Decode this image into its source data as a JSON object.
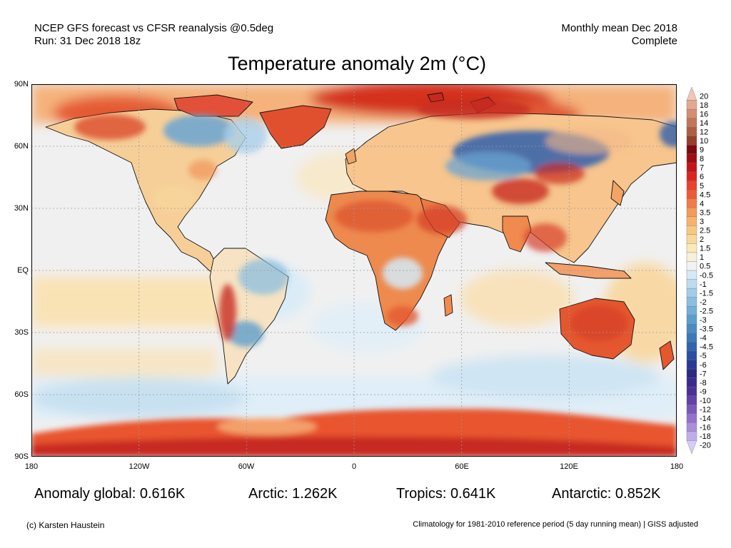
{
  "header": {
    "left_line1": "NCEP GFS forecast vs CFSR reanalysis @0.5deg",
    "left_line2": "Run: 31 Dec 2018 18z",
    "right_line1": "Monthly mean Dec 2018",
    "right_line2": "Complete"
  },
  "title": "Temperature anomaly 2m (°C)",
  "axes": {
    "y_ticks": [
      "90N",
      "60N",
      "30N",
      "EQ",
      "30S",
      "60S",
      "90S"
    ],
    "x_ticks": [
      "180",
      "120W",
      "60W",
      "0",
      "60E",
      "120E",
      "180"
    ]
  },
  "stats": {
    "global": "Anomaly global: 0.616K",
    "arctic": "Arctic: 1.262K",
    "tropics": "Tropics: 0.641K",
    "antarctic": "Antarctic: 0.852K"
  },
  "footer": {
    "credit": "(c) Karsten Haustein",
    "note": "Climatology for 1981-2010 reference period (5 day running mean) | GISS adjusted"
  },
  "colorbar": {
    "labels": [
      "20",
      "18",
      "16",
      "14",
      "12",
      "10",
      "9",
      "8",
      "7",
      "6",
      "5",
      "4.5",
      "4",
      "3.5",
      "3",
      "2.5",
      "2",
      "1.5",
      "1",
      "0.5",
      "-0.5",
      "-1",
      "-1.5",
      "-2",
      "-2.5",
      "-3",
      "-3.5",
      "-4",
      "-4.5",
      "-5",
      "-6",
      "-7",
      "-8",
      "-9",
      "-10",
      "-12",
      "-14",
      "-16",
      "-18",
      "-20"
    ],
    "colors": [
      "#efc7b4",
      "#e2a98f",
      "#d48e72",
      "#c2755a",
      "#ad5e45",
      "#963f2c",
      "#7d0a0d",
      "#a00d12",
      "#c2141a",
      "#d8261f",
      "#e8412c",
      "#ed5a38",
      "#f27b47",
      "#f59a5a",
      "#f7b36b",
      "#f8c882",
      "#f9d99b",
      "#faeab8",
      "#f7f1da",
      "#f2f2f2",
      "#d4eaf6",
      "#bcdcef",
      "#a3cde7",
      "#8bbedf",
      "#74afd6",
      "#5d9fcc",
      "#4a8cc1",
      "#3d78b7",
      "#3064ad",
      "#2a4fa0",
      "#2a3a92",
      "#2a2a84",
      "#3a2a8c",
      "#4d2f98",
      "#6342a8",
      "#7a59bb",
      "#9272cb",
      "#aa8fd9",
      "#c1acea",
      "#d8cbf5"
    ]
  },
  "map_palette": {
    "ocean": "#f0f0f0",
    "land": "#f3c58a",
    "warm": "#e9663a",
    "hot": "#c72a20",
    "cool": "#bfdff0",
    "cold": "#6aa4d2",
    "verycold": "#2f5fab",
    "coast": "#111111"
  }
}
